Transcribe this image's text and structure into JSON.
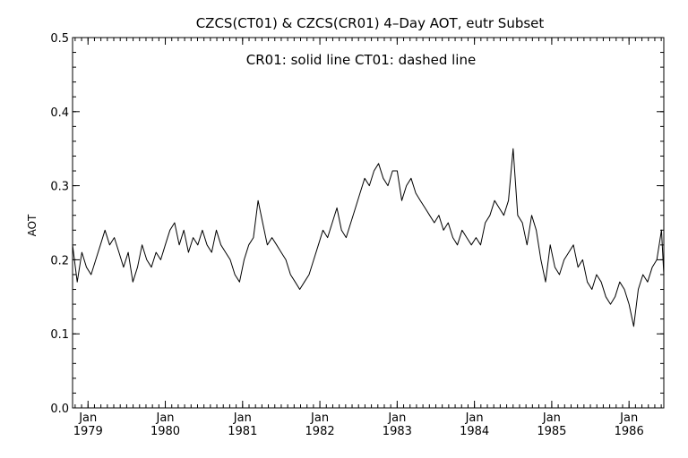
{
  "chart_data": {
    "type": "line",
    "title": "CZCS(CT01) & CZCS(CR01) 4–Day AOT, eutr Subset",
    "annotation": "CR01: solid line    CT01: dashed line",
    "xlabel": "",
    "ylabel": "AOT",
    "ylim": [
      0.0,
      0.5
    ],
    "xlim": [
      1978.8,
      1986.45
    ],
    "y_ticks": [
      0.0,
      0.1,
      0.2,
      0.3,
      0.4,
      0.5
    ],
    "y_tick_labels": [
      "0.0",
      "0.1",
      "0.2",
      "0.3",
      "0.4",
      "0.5"
    ],
    "x_ticks": [
      {
        "x": 1979.0,
        "month": "Jan",
        "year": "1979"
      },
      {
        "x": 1980.0,
        "month": "Jan",
        "year": "1980"
      },
      {
        "x": 1981.0,
        "month": "Jan",
        "year": "1981"
      },
      {
        "x": 1982.0,
        "month": "Jan",
        "year": "1982"
      },
      {
        "x": 1983.0,
        "month": "Jan",
        "year": "1983"
      },
      {
        "x": 1984.0,
        "month": "Jan",
        "year": "1984"
      },
      {
        "x": 1985.0,
        "month": "Jan",
        "year": "1985"
      },
      {
        "x": 1986.0,
        "month": "Jan",
        "year": "1986"
      }
    ],
    "series": [
      {
        "name": "CR01",
        "x": [
          1978.8,
          1978.86,
          1978.92,
          1978.98,
          1979.04,
          1979.1,
          1979.16,
          1979.22,
          1979.28,
          1979.34,
          1979.4,
          1979.46,
          1979.52,
          1979.58,
          1979.64,
          1979.7,
          1979.76,
          1979.82,
          1979.88,
          1979.94,
          1980.0,
          1980.06,
          1980.12,
          1980.18,
          1980.24,
          1980.3,
          1980.36,
          1980.42,
          1980.48,
          1980.54,
          1980.6,
          1980.66,
          1980.72,
          1980.78,
          1980.84,
          1980.9,
          1980.96,
          1981.02,
          1981.08,
          1981.14,
          1981.2,
          1981.26,
          1981.32,
          1981.38,
          1981.44,
          1981.5,
          1981.56,
          1981.62,
          1981.68,
          1981.74,
          1981.8,
          1981.86,
          1981.92,
          1981.98,
          1982.04,
          1982.1,
          1982.16,
          1982.22,
          1982.28,
          1982.34,
          1982.4,
          1982.46,
          1982.52,
          1982.58,
          1982.64,
          1982.7,
          1982.76,
          1982.82,
          1982.88,
          1982.94,
          1983.0,
          1983.06,
          1983.12,
          1983.18,
          1983.24,
          1983.3,
          1983.36,
          1983.42,
          1983.48,
          1983.54,
          1983.6,
          1983.66,
          1983.72,
          1983.78,
          1983.84,
          1983.9,
          1983.96,
          1984.02,
          1984.08,
          1984.14,
          1984.2,
          1984.26,
          1984.32,
          1984.38,
          1984.44,
          1984.5,
          1984.56,
          1984.62,
          1984.68,
          1984.74,
          1984.8,
          1984.86,
          1984.92,
          1984.98,
          1985.04,
          1985.1,
          1985.16,
          1985.22,
          1985.28,
          1985.34,
          1985.4,
          1985.46,
          1985.52,
          1985.58,
          1985.64,
          1985.7,
          1985.76,
          1985.82,
          1985.88,
          1985.94,
          1986.0,
          1986.06,
          1986.12,
          1986.18,
          1986.24,
          1986.3,
          1986.36,
          1986.42,
          1986.45
        ],
        "values": [
          0.22,
          0.17,
          0.21,
          0.19,
          0.18,
          0.2,
          0.22,
          0.24,
          0.22,
          0.23,
          0.21,
          0.19,
          0.21,
          0.17,
          0.19,
          0.22,
          0.2,
          0.19,
          0.21,
          0.2,
          0.22,
          0.24,
          0.25,
          0.22,
          0.24,
          0.21,
          0.23,
          0.22,
          0.24,
          0.22,
          0.21,
          0.24,
          0.22,
          0.21,
          0.2,
          0.18,
          0.17,
          0.2,
          0.22,
          0.23,
          0.28,
          0.25,
          0.22,
          0.23,
          0.22,
          0.21,
          0.2,
          0.18,
          0.17,
          0.16,
          0.17,
          0.18,
          0.2,
          0.22,
          0.24,
          0.23,
          0.25,
          0.27,
          0.24,
          0.23,
          0.25,
          0.27,
          0.29,
          0.31,
          0.3,
          0.32,
          0.33,
          0.31,
          0.3,
          0.32,
          0.32,
          0.28,
          0.3,
          0.31,
          0.29,
          0.28,
          0.27,
          0.26,
          0.25,
          0.26,
          0.24,
          0.25,
          0.23,
          0.22,
          0.24,
          0.23,
          0.22,
          0.23,
          0.22,
          0.25,
          0.26,
          0.28,
          0.27,
          0.26,
          0.28,
          0.35,
          0.26,
          0.25,
          0.22,
          0.26,
          0.24,
          0.2,
          0.17,
          0.22,
          0.19,
          0.18,
          0.2,
          0.21,
          0.22,
          0.19,
          0.2,
          0.17,
          0.16,
          0.18,
          0.17,
          0.15,
          0.14,
          0.15,
          0.17,
          0.16,
          0.14,
          0.11,
          0.16,
          0.18,
          0.17,
          0.19,
          0.2,
          0.24,
          0.18
        ]
      }
    ],
    "grid": false,
    "legend": "none"
  }
}
